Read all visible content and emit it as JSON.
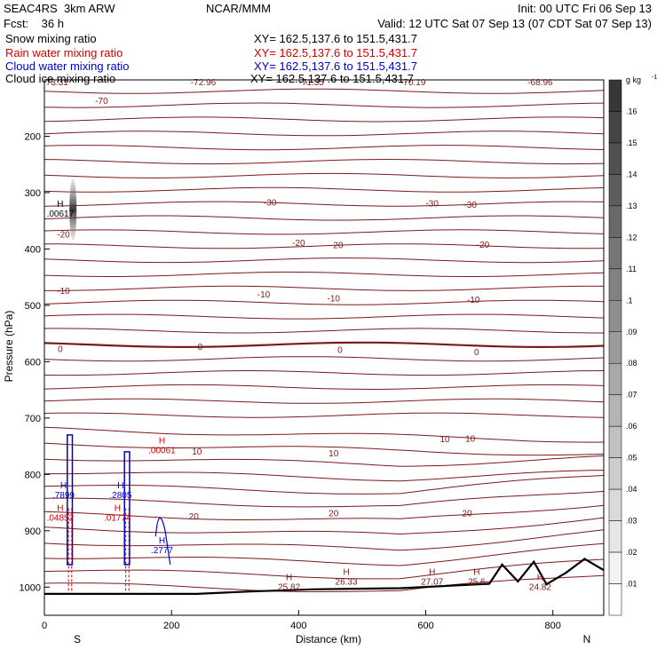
{
  "header": {
    "project": "SEAC4RS",
    "model": "3km ARW",
    "org": "NCAR/MMM",
    "init": "Init: 00 UTC Fri 06 Sep 13",
    "fcst_label": "Fcst:",
    "fcst_value": "36 h",
    "valid": "Valid: 12 UTC Sat 07 Sep 13 (07 CDT Sat 07 Sep 13)",
    "fields": [
      {
        "label": "Snow mixing ratio",
        "xy": "XY= 162.5,137.6 to 151.5,431.7",
        "color": "#000000"
      },
      {
        "label": "Rain water mixing ratio",
        "xy": "XY= 162.5,137.6 to 151.5,431.7",
        "color": "#d40000"
      },
      {
        "label": "Cloud water mixing ratio",
        "xy": "XY= 162.5,137.6 to 151.5,431.7",
        "color": "#0000cc"
      },
      {
        "label": "Cloud ice mixing ratio",
        "xy": "XY= 162.5,137.6 to 151.5,431.7",
        "color": "#000000"
      }
    ]
  },
  "chart_data": {
    "type": "contour cross-section",
    "xlabel": "Distance (km)",
    "ylabel": "Pressure (hPa)",
    "xlim": [
      0,
      880
    ],
    "ylim": [
      1050,
      100
    ],
    "x_ticks": [
      "0",
      "200",
      "400",
      "600",
      "800"
    ],
    "y_ticks": [
      "200",
      "300",
      "400",
      "500",
      "600",
      "700",
      "800",
      "900",
      "1000"
    ],
    "endpoint_labels": {
      "left": "S",
      "right": "N"
    },
    "colorbar": {
      "unit": "g kg",
      "unit_exp": "-1",
      "levels": [
        ".16",
        ".15",
        ".14",
        ".13",
        ".12",
        ".11",
        ".1",
        ".09",
        ".08",
        ".07",
        ".06",
        ".05",
        ".04",
        ".03",
        ".02",
        ".01"
      ]
    },
    "temperature_contours": {
      "color": "#7a1a1a",
      "zero_line_pressure": 580,
      "levels": [
        "-70",
        "-30",
        "-20",
        "-10",
        "0",
        "10",
        "20"
      ],
      "labels": [
        {
          "text": "-70",
          "x": 90,
          "p": 138
        },
        {
          "text": "-30",
          "x": 355,
          "p": 318
        },
        {
          "text": "-30",
          "x": 610,
          "p": 320
        },
        {
          "text": "-30",
          "x": 670,
          "p": 322
        },
        {
          "text": "-20",
          "x": 30,
          "p": 375
        },
        {
          "text": "-20",
          "x": 400,
          "p": 390
        },
        {
          "text": "-20",
          "x": 460,
          "p": 394
        },
        {
          "text": "-20",
          "x": 690,
          "p": 393
        },
        {
          "text": "-10",
          "x": 30,
          "p": 475
        },
        {
          "text": "-10",
          "x": 345,
          "p": 481
        },
        {
          "text": "-10",
          "x": 455,
          "p": 488
        },
        {
          "text": "-10",
          "x": 675,
          "p": 491
        },
        {
          "text": "0",
          "x": 25,
          "p": 578
        },
        {
          "text": "0",
          "x": 245,
          "p": 574
        },
        {
          "text": "0",
          "x": 465,
          "p": 580
        },
        {
          "text": "0",
          "x": 680,
          "p": 584
        },
        {
          "text": "10",
          "x": 240,
          "p": 760
        },
        {
          "text": "10",
          "x": 455,
          "p": 763
        },
        {
          "text": "10",
          "x": 630,
          "p": 738
        },
        {
          "text": "10",
          "x": 670,
          "p": 737
        },
        {
          "text": "20",
          "x": 235,
          "p": 875
        },
        {
          "text": "20",
          "x": 455,
          "p": 870
        },
        {
          "text": "20",
          "x": 665,
          "p": 870
        }
      ],
      "extrema": [
        {
          "text": "H",
          "value": ".00617",
          "x": 25,
          "p": 325,
          "color": "#000000"
        },
        {
          "text": "H",
          "value": ".00061",
          "x": 185,
          "p": 745,
          "color": "#d40000"
        },
        {
          "text": "H",
          "value": ".7899",
          "x": 30,
          "p": 825,
          "color": "#0000cc"
        },
        {
          "text": "H",
          "value": ".2805",
          "x": 120,
          "p": 825,
          "color": "#0000cc"
        },
        {
          "text": "H",
          "value": ".04852",
          "x": 25,
          "p": 865,
          "color": "#d40000"
        },
        {
          "text": "H",
          "value": ".01774",
          "x": 115,
          "p": 865,
          "color": "#d40000"
        },
        {
          "text": "H",
          "value": ".2777",
          "x": 185,
          "p": 922,
          "color": "#0000cc"
        },
        {
          "text": "H",
          "value": "25.82",
          "x": 385,
          "p": 988,
          "color": "#7a1a1a"
        },
        {
          "text": "H",
          "value": "26.33",
          "x": 475,
          "p": 978,
          "color": "#7a1a1a"
        },
        {
          "text": "H",
          "value": "27.07",
          "x": 610,
          "p": 978,
          "color": "#7a1a1a"
        },
        {
          "text": "H",
          "value": "25.6",
          "x": 680,
          "p": 978,
          "color": "#7a1a1a"
        },
        {
          "text": "H",
          "value": "24.82",
          "x": 780,
          "p": 988,
          "color": "#7a1a1a"
        }
      ],
      "top_values": [
        {
          "text": "73.31",
          "x": 20
        },
        {
          "text": "-72.96",
          "x": 250
        },
        {
          "text": "-71.35",
          "x": 420
        },
        {
          "text": "-70.19",
          "x": 580
        },
        {
          "text": "-68.96",
          "x": 780
        }
      ]
    }
  }
}
